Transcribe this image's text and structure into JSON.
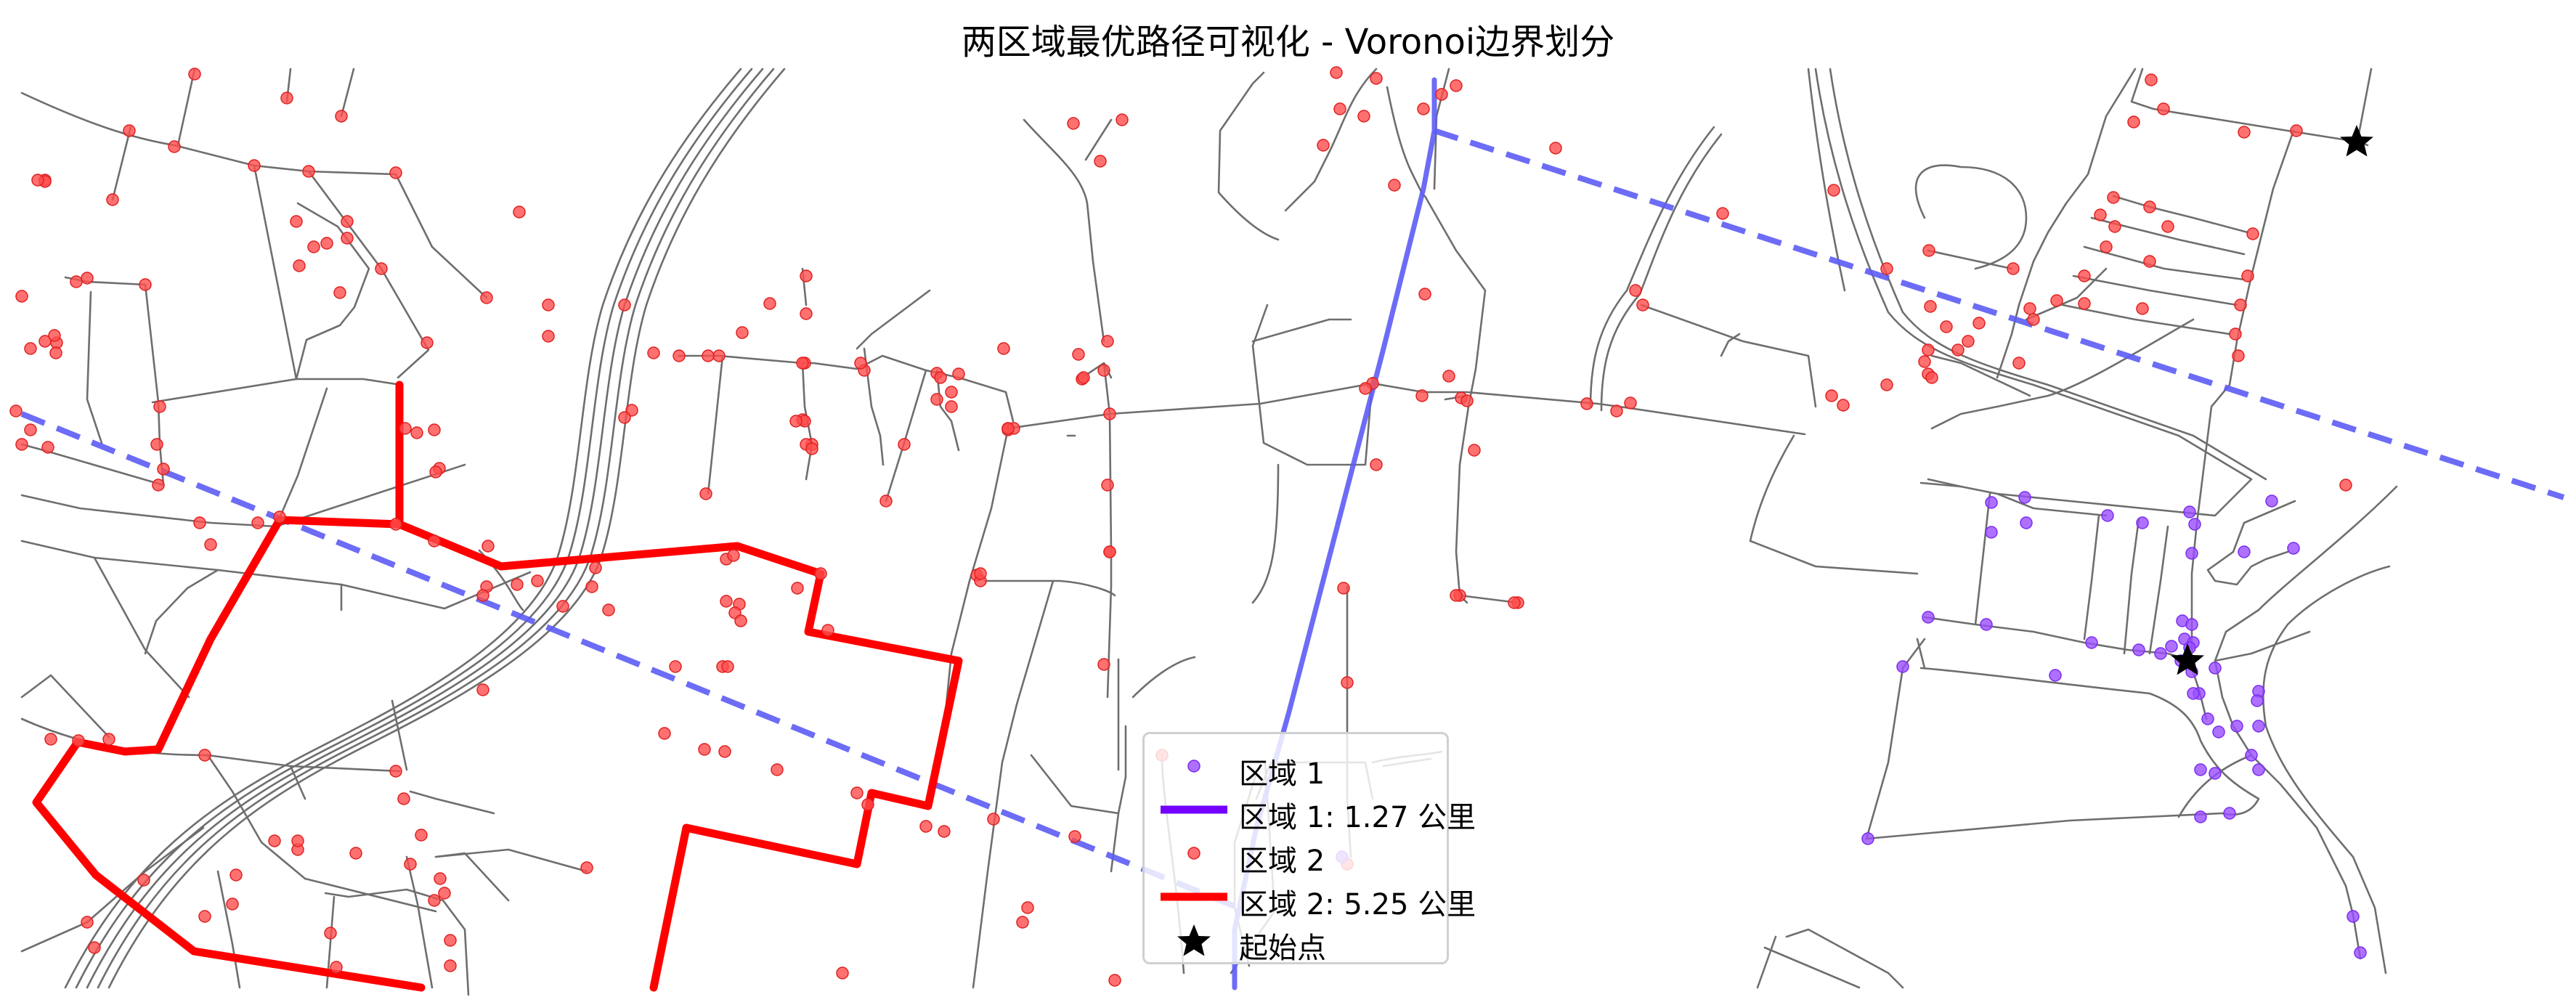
{
  "title": "两区域最优路径可视化 - Voronoi边界划分",
  "colors": {
    "background": "#ffffff",
    "road": "#6e6e6e",
    "region1": "#8a3ffc",
    "region2": "#ff2a2a",
    "path1": "#7300ff",
    "path2": "#ff0000",
    "voronoi_boundary": "#5c5cf5",
    "start_point": "#000000"
  },
  "legend": {
    "region1_points": "区域 1",
    "region1_path": "区域 1: 1.27 公里",
    "region2_points": "区域 2",
    "region2_path": "区域 2: 5.25 公里",
    "start_marker": "起始点"
  },
  "icons": {
    "start_marker": "black-star-icon",
    "region_point": "circle-icon"
  }
}
